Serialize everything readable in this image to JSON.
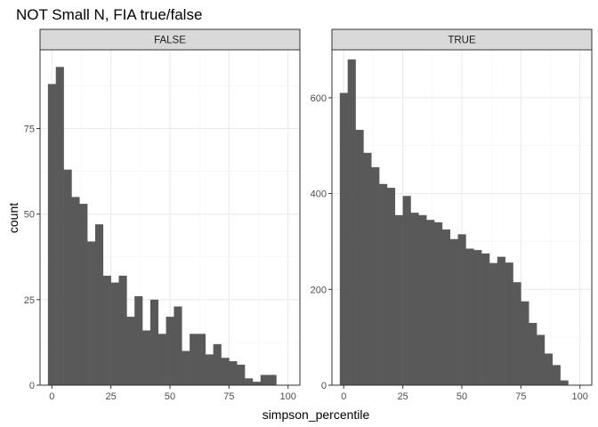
{
  "chart_data": {
    "type": "bar",
    "title": "NOT Small N, FIA true/false",
    "xlabel": "simpson_percentile",
    "ylabel": "count",
    "bin_width": 3.333,
    "x_breaks": [
      0,
      25,
      50,
      75,
      100
    ],
    "x_tick_labels": [
      "0",
      "25",
      "50",
      "75",
      "100"
    ],
    "bin_start": -1.667,
    "xlim": [
      -5,
      105
    ],
    "grid": true,
    "colors": {
      "bar": "#595959",
      "panel_border": "#333333",
      "strip_fill": "#d9d9d9",
      "grid_major": "#ebebeb",
      "grid_minor": "#f5f5f5"
    },
    "panels": [
      {
        "strip": "FALSE",
        "ylim": [
          0,
          98
        ],
        "y_breaks": [
          0,
          25,
          50,
          75
        ],
        "y_tick_labels": [
          "0",
          "25",
          "50",
          "75"
        ],
        "counts": [
          88,
          93,
          63,
          55,
          53,
          42,
          47,
          32,
          30,
          32,
          20,
          26,
          16,
          25,
          15,
          20,
          23,
          10,
          15,
          15,
          9,
          12,
          8,
          7,
          6,
          2,
          1,
          3,
          3
        ]
      },
      {
        "strip": "TRUE",
        "ylim": [
          0,
          700
        ],
        "y_breaks": [
          0,
          200,
          400,
          600
        ],
        "y_tick_labels": [
          "0",
          "200",
          "400",
          "600"
        ],
        "counts": [
          610,
          680,
          533,
          485,
          455,
          420,
          412,
          355,
          395,
          360,
          355,
          345,
          340,
          325,
          305,
          315,
          285,
          282,
          275,
          255,
          268,
          256,
          215,
          175,
          130,
          105,
          66,
          42,
          10
        ]
      }
    ]
  }
}
